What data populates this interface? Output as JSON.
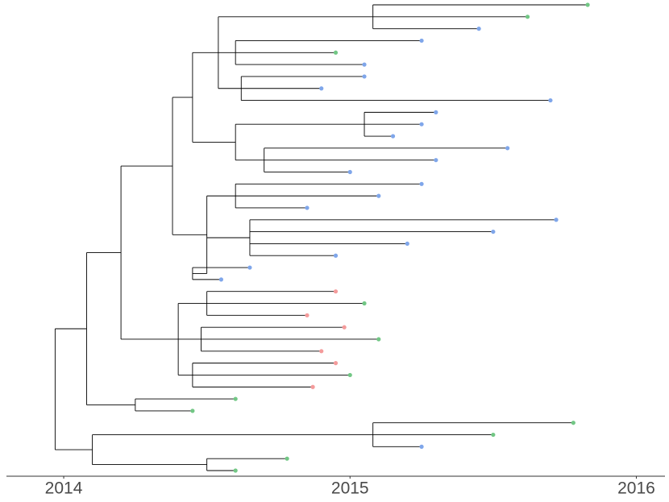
{
  "chart_data": {
    "type": "tree",
    "xlim": [
      2013.8,
      2016.1
    ],
    "xticks": [
      2014,
      2015,
      2016
    ],
    "tree": {
      "x": 2013.97,
      "children": [
        {
          "x": 2014.08,
          "children": [
            {
              "x": 2014.2,
              "children": [
                {
                  "x": 2014.38,
                  "children": [
                    {
                      "x": 2014.45,
                      "children": [
                        {
                          "x": 2014.54,
                          "children": [
                            {
                              "x": 2015.08,
                              "children": [
                                {
                                  "x": 2015.83,
                                  "color": "#72c785"
                                },
                                {
                                  "x": 2015.62,
                                  "color": "#72c785"
                                },
                                {
                                  "x": 2015.45,
                                  "color": "#7fa6ea"
                                }
                              ]
                            },
                            {
                              "x": 2014.6,
                              "children": [
                                {
                                  "x": 2015.25,
                                  "color": "#7fa6ea"
                                },
                                {
                                  "x": 2014.95,
                                  "color": "#72c785"
                                },
                                {
                                  "x": 2015.05,
                                  "color": "#7fa6ea"
                                }
                              ]
                            },
                            {
                              "x": 2014.62,
                              "children": [
                                {
                                  "x": 2015.05,
                                  "color": "#7fa6ea"
                                },
                                {
                                  "x": 2014.9,
                                  "color": "#7fa6ea"
                                },
                                {
                                  "x": 2015.7,
                                  "color": "#7fa6ea"
                                }
                              ]
                            }
                          ]
                        },
                        {
                          "x": 2014.6,
                          "children": [
                            {
                              "x": 2015.05,
                              "children": [
                                {
                                  "x": 2015.3,
                                  "color": "#7fa6ea"
                                },
                                {
                                  "x": 2015.25,
                                  "color": "#7fa6ea"
                                },
                                {
                                  "x": 2015.15,
                                  "color": "#7fa6ea"
                                }
                              ]
                            },
                            {
                              "x": 2014.7,
                              "children": [
                                {
                                  "x": 2015.55,
                                  "color": "#7fa6ea"
                                },
                                {
                                  "x": 2015.3,
                                  "color": "#7fa6ea"
                                },
                                {
                                  "x": 2015.0,
                                  "color": "#7fa6ea"
                                }
                              ]
                            }
                          ]
                        }
                      ]
                    },
                    {
                      "x": 2014.5,
                      "children": [
                        {
                          "x": 2014.6,
                          "children": [
                            {
                              "x": 2015.25,
                              "color": "#7fa6ea"
                            },
                            {
                              "x": 2015.1,
                              "color": "#7fa6ea"
                            },
                            {
                              "x": 2014.85,
                              "color": "#7fa6ea"
                            }
                          ]
                        },
                        {
                          "x": 2014.65,
                          "children": [
                            {
                              "x": 2015.72,
                              "color": "#7fa6ea"
                            },
                            {
                              "x": 2015.5,
                              "color": "#7fa6ea"
                            },
                            {
                              "x": 2015.2,
                              "color": "#7fa6ea"
                            },
                            {
                              "x": 2014.95,
                              "color": "#7fa6ea"
                            }
                          ]
                        },
                        {
                          "x": 2014.45,
                          "children": [
                            {
                              "x": 2014.65,
                              "color": "#7fa6ea"
                            },
                            {
                              "x": 2014.55,
                              "color": "#7fa6ea"
                            }
                          ]
                        }
                      ]
                    }
                  ]
                },
                {
                  "x": 2014.4,
                  "children": [
                    {
                      "x": 2014.5,
                      "children": [
                        {
                          "x": 2014.95,
                          "color": "#f49b9b"
                        },
                        {
                          "x": 2015.05,
                          "color": "#72c785"
                        },
                        {
                          "x": 2014.85,
                          "color": "#f49b9b"
                        }
                      ]
                    },
                    {
                      "x": 2014.48,
                      "children": [
                        {
                          "x": 2014.98,
                          "color": "#f49b9b"
                        },
                        {
                          "x": 2015.1,
                          "color": "#72c785"
                        },
                        {
                          "x": 2014.9,
                          "color": "#f49b9b"
                        }
                      ]
                    },
                    {
                      "x": 2014.45,
                      "children": [
                        {
                          "x": 2014.95,
                          "color": "#f49b9b"
                        },
                        {
                          "x": 2015.0,
                          "color": "#72c785"
                        },
                        {
                          "x": 2014.87,
                          "color": "#f49b9b"
                        }
                      ]
                    }
                  ]
                }
              ]
            },
            {
              "x": 2014.25,
              "children": [
                {
                  "x": 2014.6,
                  "color": "#72c785"
                },
                {
                  "x": 2014.45,
                  "color": "#72c785"
                }
              ]
            }
          ]
        },
        {
          "x": 2014.1,
          "children": [
            {
              "x": 2015.08,
              "children": [
                {
                  "x": 2015.78,
                  "color": "#72c785"
                },
                {
                  "x": 2015.5,
                  "color": "#72c785"
                },
                {
                  "x": 2015.25,
                  "color": "#7fa6ea"
                }
              ]
            },
            {
              "x": 2014.5,
              "children": [
                {
                  "x": 2014.78,
                  "color": "#72c785"
                },
                {
                  "x": 2014.6,
                  "color": "#72c785"
                }
              ]
            }
          ]
        }
      ]
    }
  }
}
